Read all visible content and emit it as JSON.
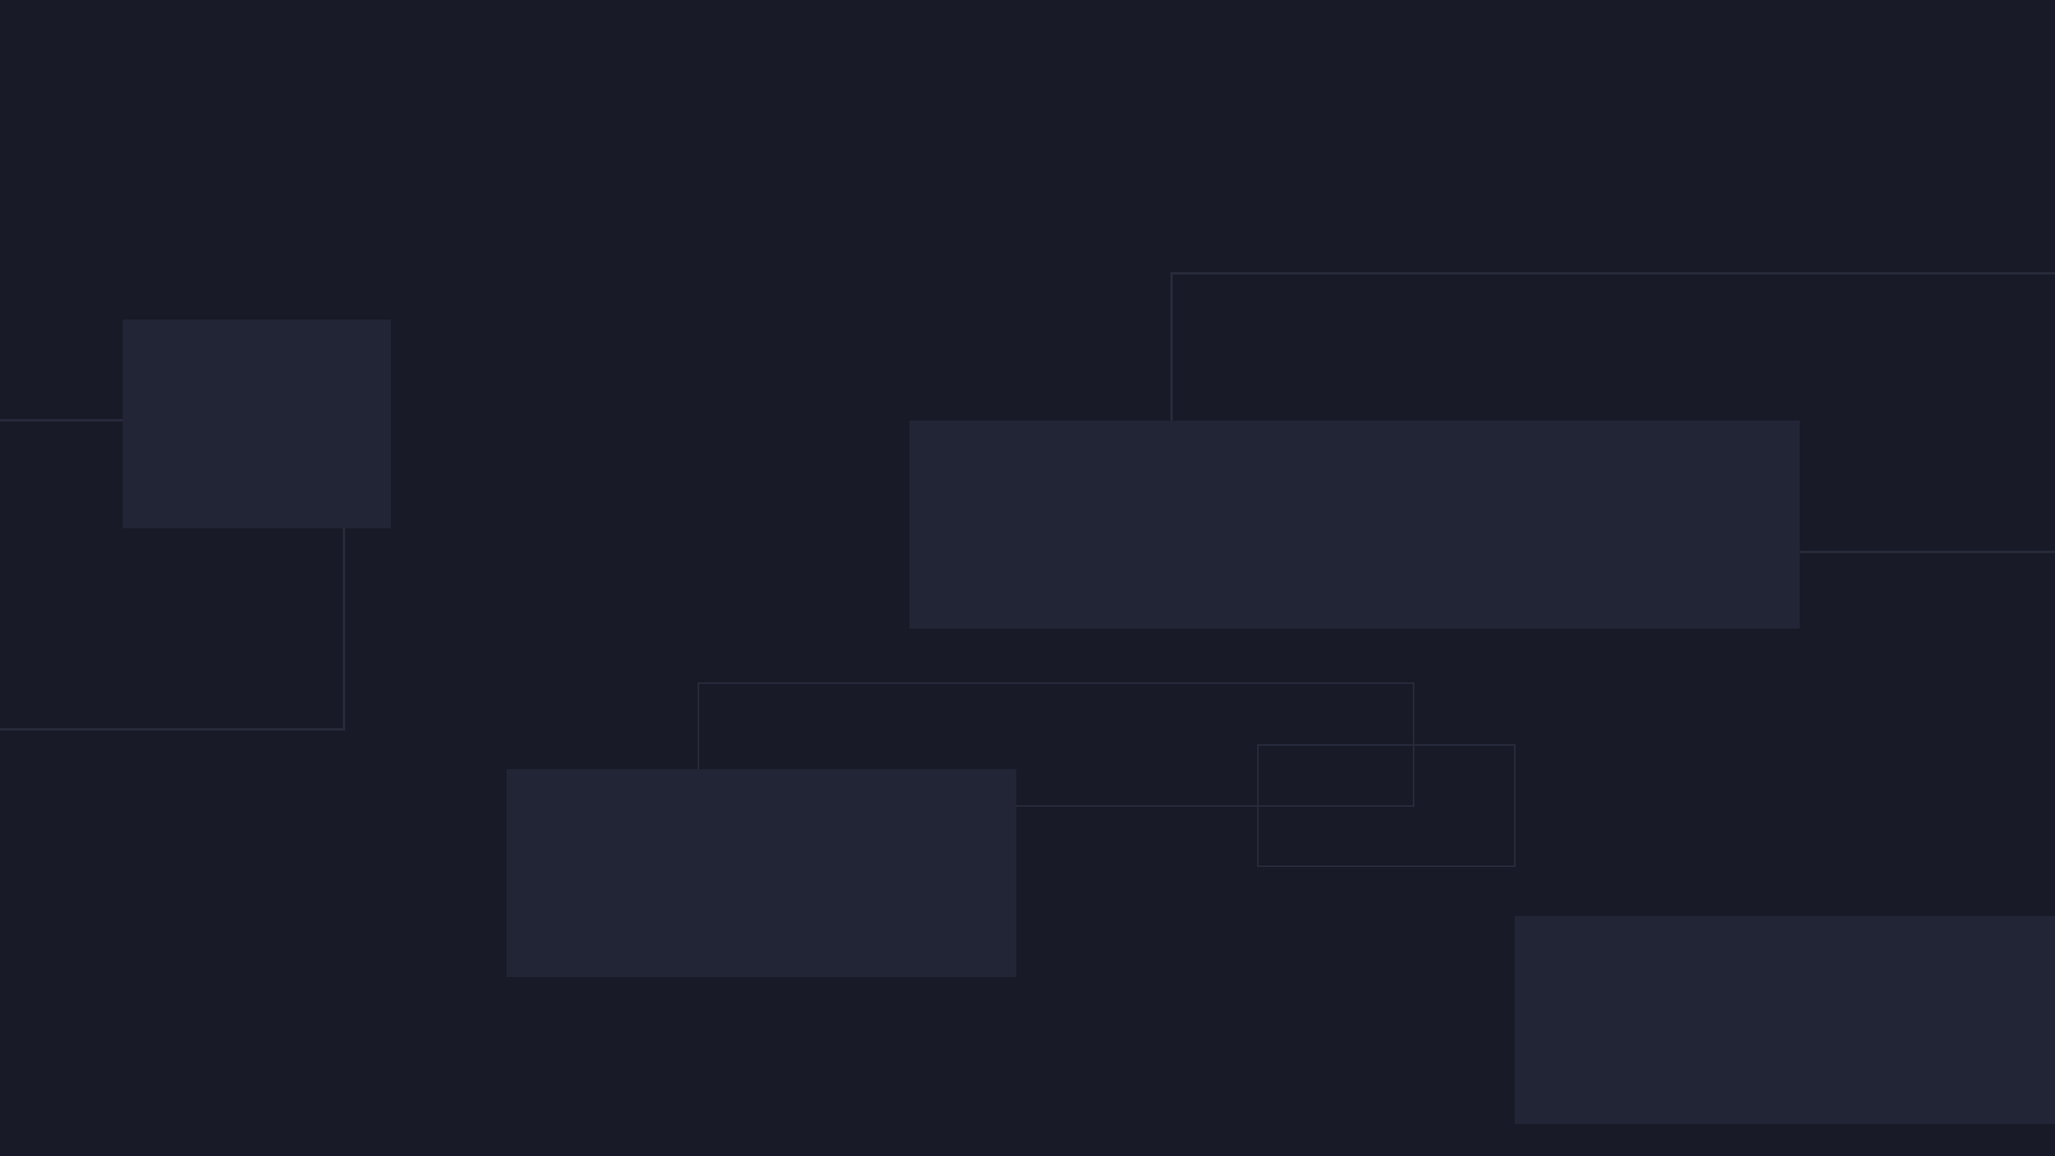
{
  "scene": {
    "background_color": "#181b27",
    "filled_shape_color": "#212536",
    "outline_color": "#272a3a"
  }
}
